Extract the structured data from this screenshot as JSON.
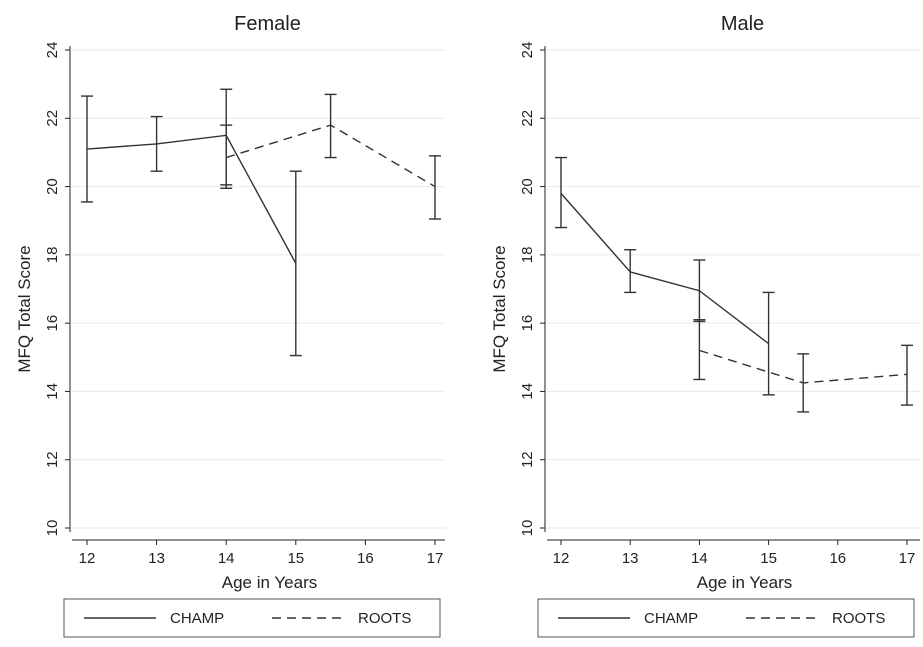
{
  "chart_data": [
    {
      "type": "line",
      "title": "Female",
      "xlabel": "Age in Years",
      "ylabel": "MFQ Total Score",
      "xlim": [
        12,
        17
      ],
      "ylim": [
        10,
        24
      ],
      "xticks": [
        12,
        13,
        14,
        15,
        16,
        17
      ],
      "yticks": [
        10,
        12,
        14,
        16,
        18,
        20,
        22,
        24
      ],
      "grid": true,
      "legend_position": "bottom",
      "series": [
        {
          "name": "CHAMP",
          "line_style": "solid",
          "points": [
            {
              "x": 12,
              "y": 21.1,
              "lo": 19.55,
              "hi": 22.65
            },
            {
              "x": 13,
              "y": 21.25,
              "lo": 20.45,
              "hi": 22.05
            },
            {
              "x": 14,
              "y": 21.5,
              "lo": 20.05,
              "hi": 22.85
            },
            {
              "x": 15,
              "y": 17.75,
              "lo": 15.05,
              "hi": 20.45
            }
          ]
        },
        {
          "name": "ROOTS",
          "line_style": "dashed",
          "points": [
            {
              "x": 14,
              "y": 20.85,
              "lo": 19.95,
              "hi": 21.8
            },
            {
              "x": 15.5,
              "y": 21.8,
              "lo": 20.85,
              "hi": 22.7
            },
            {
              "x": 17,
              "y": 20.0,
              "lo": 19.05,
              "hi": 20.9
            }
          ]
        }
      ]
    },
    {
      "type": "line",
      "title": "Male",
      "xlabel": "Age in Years",
      "ylabel": "MFQ Total Score",
      "xlim": [
        12,
        17
      ],
      "ylim": [
        10,
        24
      ],
      "xticks": [
        12,
        13,
        14,
        15,
        16,
        17
      ],
      "yticks": [
        10,
        12,
        14,
        16,
        18,
        20,
        22,
        24
      ],
      "grid": true,
      "legend_position": "bottom",
      "series": [
        {
          "name": "CHAMP",
          "line_style": "solid",
          "points": [
            {
              "x": 12,
              "y": 19.8,
              "lo": 18.8,
              "hi": 20.85
            },
            {
              "x": 13,
              "y": 17.5,
              "lo": 16.9,
              "hi": 18.15
            },
            {
              "x": 14,
              "y": 16.95,
              "lo": 16.05,
              "hi": 17.85
            },
            {
              "x": 15,
              "y": 15.4,
              "lo": 13.9,
              "hi": 16.9
            }
          ]
        },
        {
          "name": "ROOTS",
          "line_style": "dashed",
          "points": [
            {
              "x": 14,
              "y": 15.2,
              "lo": 14.35,
              "hi": 16.1
            },
            {
              "x": 15.5,
              "y": 14.25,
              "lo": 13.4,
              "hi": 15.1
            },
            {
              "x": 17,
              "y": 14.5,
              "lo": 13.6,
              "hi": 15.35
            }
          ]
        }
      ]
    }
  ]
}
